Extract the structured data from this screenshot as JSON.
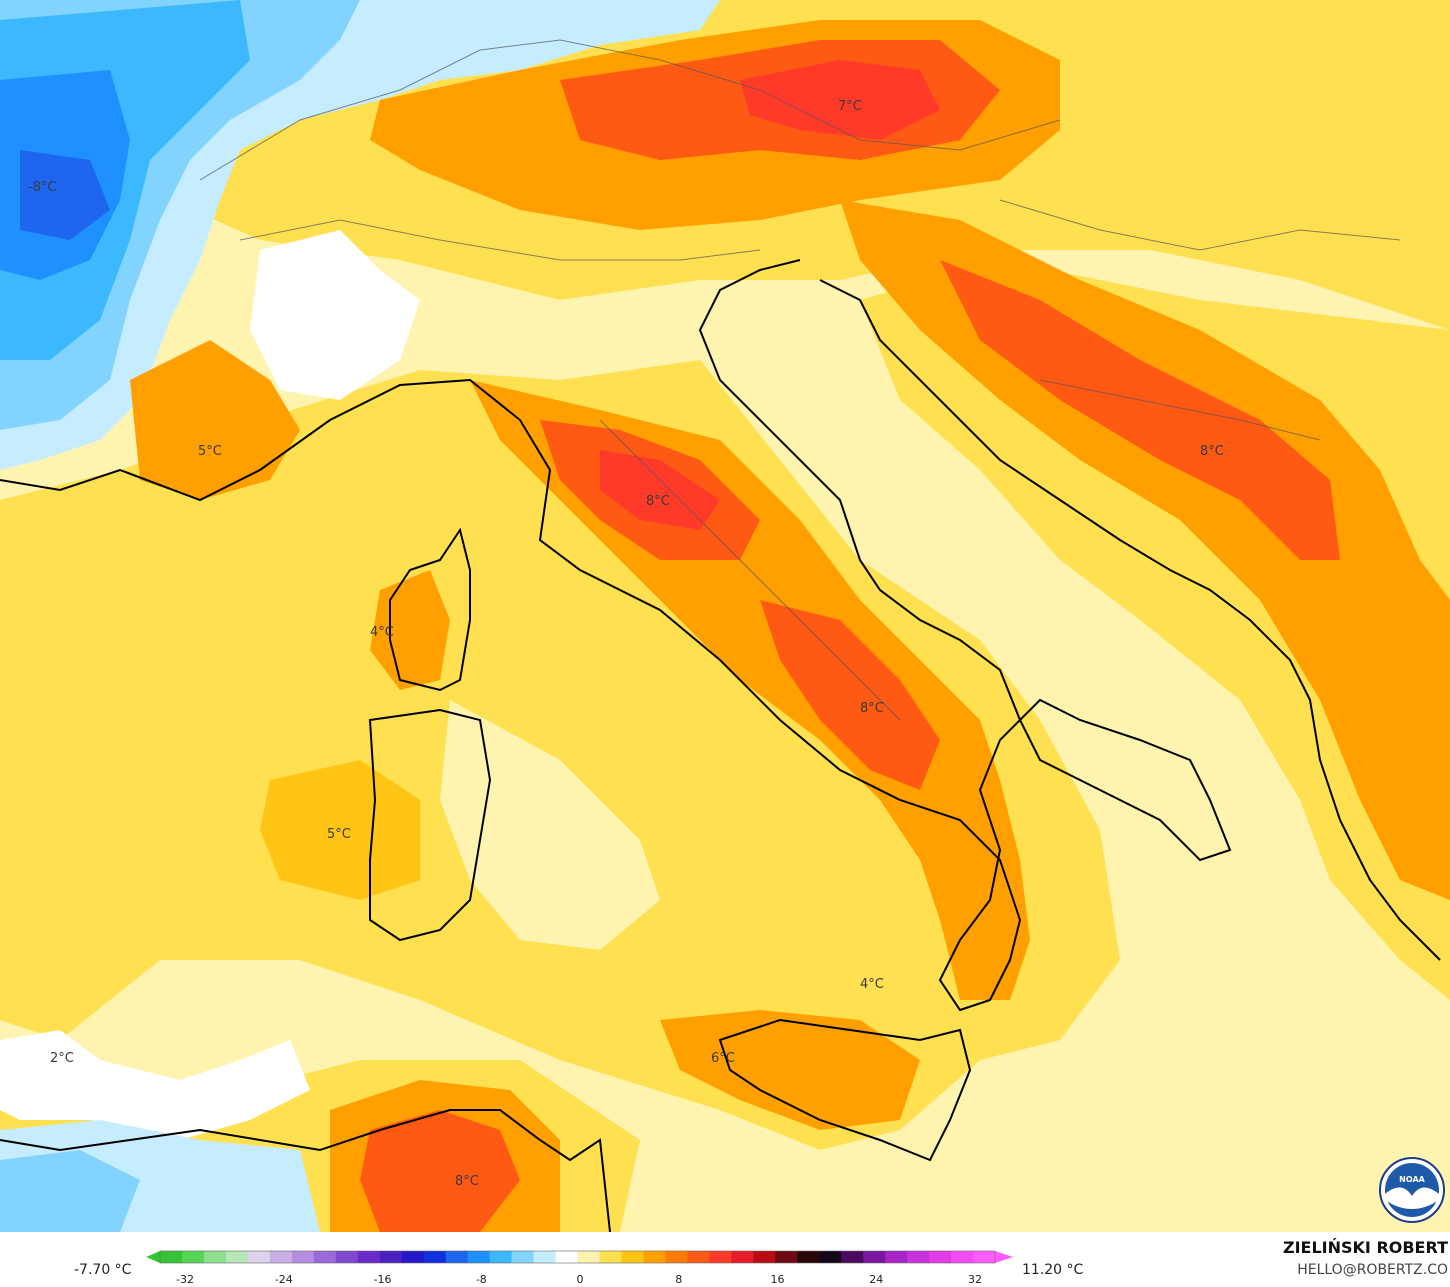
{
  "map": {
    "labels": [
      {
        "id": "fr-w",
        "text": "-8°C"
      },
      {
        "id": "alps-n",
        "text": "7°C"
      },
      {
        "id": "provence",
        "text": "5°C"
      },
      {
        "id": "tuscany",
        "text": "8°C"
      },
      {
        "id": "corsica",
        "text": "4°C"
      },
      {
        "id": "sardinia",
        "text": "5°C"
      },
      {
        "id": "campania",
        "text": "8°C"
      },
      {
        "id": "balkans",
        "text": "8°C"
      },
      {
        "id": "tyrrhenian-s",
        "text": "4°C"
      },
      {
        "id": "sicily-n",
        "text": "6°C"
      },
      {
        "id": "balearic",
        "text": "2°C"
      },
      {
        "id": "tunisia",
        "text": "8°C"
      }
    ]
  },
  "colorbar": {
    "min_label": "-7.70 °C",
    "max_label": "11.20 °C",
    "ticks": [
      "-32",
      "-24",
      "-16",
      "-8",
      "0",
      "8",
      "16",
      "24",
      "32"
    ],
    "colors": [
      "#35c435",
      "#55d655",
      "#8ee08e",
      "#b8e8b8",
      "#dcd2ee",
      "#c9aee6",
      "#b48de0",
      "#9a6ad8",
      "#8048d0",
      "#6a2cc8",
      "#4a20c0",
      "#2418c8",
      "#1030e0",
      "#1e66f0",
      "#1e90ff",
      "#3cb8ff",
      "#82d4ff",
      "#c6ecff",
      "#ffffff",
      "#fff2b0",
      "#ffe050",
      "#ffc414",
      "#ffa000",
      "#ff7c00",
      "#ff5a14",
      "#ff3a28",
      "#e81c28",
      "#b80c14",
      "#6e0a12",
      "#2a0608",
      "#160418",
      "#4a0a5e",
      "#7a16a0",
      "#a424c8",
      "#c832dc",
      "#e23ce8",
      "#f44cf4",
      "#ff5cff"
    ]
  },
  "credit": {
    "name": "ZIELIŃSKI ROBERT",
    "email": "HELLO@ROBERTZ.CO"
  },
  "logo": {
    "text": "NOAA"
  }
}
